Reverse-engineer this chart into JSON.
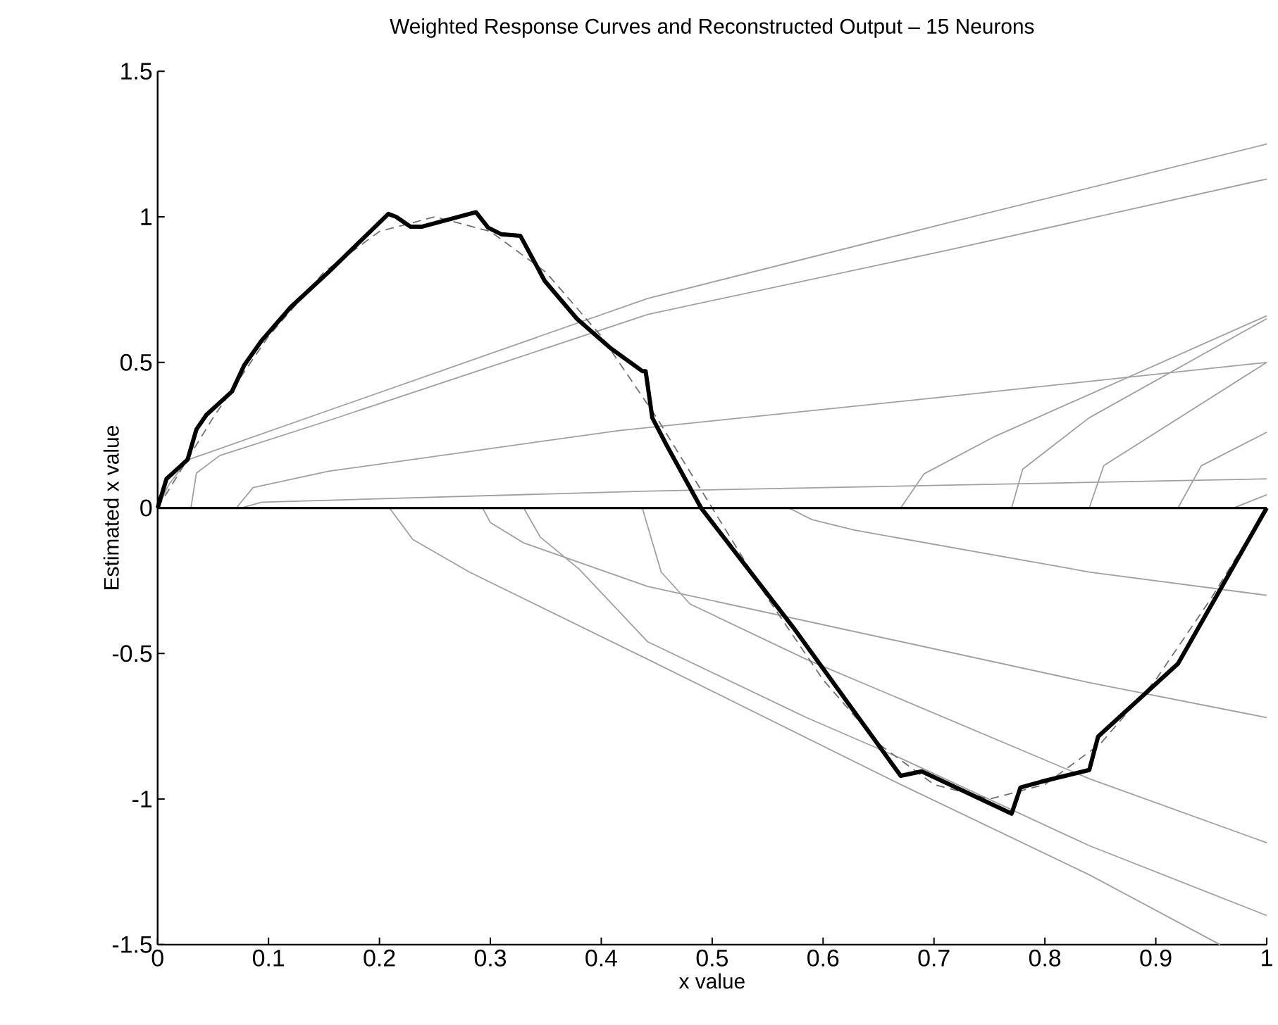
{
  "chart_data": {
    "type": "line",
    "title": "Weighted Response Curves and Reconstructed Output – 15 Neurons",
    "xlabel": "x value",
    "ylabel": "Estimated x value",
    "xlim": [
      0,
      1
    ],
    "ylim": [
      -1.5,
      1.5
    ],
    "xticks": [
      0,
      0.1,
      0.2,
      0.3,
      0.4,
      0.5,
      0.6,
      0.7,
      0.8,
      0.9,
      1
    ],
    "yticks": [
      -1.5,
      -1,
      -0.5,
      0,
      0.5,
      1,
      1.5
    ],
    "marker": "none",
    "ref_lines": [
      {
        "axis": "y",
        "value": 0,
        "color": "#000000"
      }
    ],
    "series": [
      {
        "color": "#000000",
        "x": [
          0,
          0.008,
          0.027,
          0.035,
          0.044,
          0.067,
          0.078,
          0.094,
          0.12,
          0.154,
          0.208,
          0.215,
          0.228,
          0.238,
          0.287,
          0.298,
          0.31,
          0.327,
          0.349,
          0.378,
          0.408,
          0.437,
          0.44,
          0.446,
          0.459,
          0.49,
          0.573,
          0.67,
          0.689,
          0.77,
          0.778,
          0.797,
          0.84,
          0.848,
          0.92,
          1
        ],
        "values": [
          0,
          0.1,
          0.166,
          0.27,
          0.32,
          0.4,
          0.49,
          0.576,
          0.69,
          0.81,
          1.01,
          1.0,
          0.966,
          0.966,
          1.016,
          0.963,
          0.94,
          0.935,
          0.78,
          0.65,
          0.55,
          0.47,
          0.47,
          0.31,
          0.215,
          0,
          -0.41,
          -0.92,
          -0.905,
          -1.05,
          -0.96,
          -0.94,
          -0.9,
          -0.785,
          -0.535,
          0
        ]
      },
      {
        "color": "#707070",
        "line_style": "dashed",
        "x": [
          0,
          0.05,
          0.1,
          0.15,
          0.2,
          0.25,
          0.3,
          0.35,
          0.4,
          0.45,
          0.5,
          0.55,
          0.6,
          0.65,
          0.7,
          0.75,
          0.8,
          0.85,
          0.9,
          0.95,
          1
        ],
        "values": [
          0,
          0.31,
          0.59,
          0.81,
          0.95,
          1,
          0.95,
          0.81,
          0.59,
          0.31,
          0,
          -0.31,
          -0.59,
          -0.81,
          -0.95,
          -1,
          -0.95,
          -0.81,
          -0.59,
          -0.31,
          0
        ]
      },
      {
        "color": "#a0a0a0",
        "x": [
          0,
          0.01,
          0.027,
          0.154,
          0.442,
          0.713,
          1
        ],
        "values": [
          0,
          0.08,
          0.165,
          0.335,
          0.72,
          0.98,
          1.25
        ]
      },
      {
        "color": "#a0a0a0",
        "x": [
          0.03,
          0.035,
          0.056,
          0.154,
          0.442,
          0.713,
          1
        ],
        "values": [
          0,
          0.12,
          0.18,
          0.3,
          0.665,
          0.886,
          1.13
        ]
      },
      {
        "color": "#a0a0a0",
        "x": [
          0.071,
          0.086,
          0.154,
          0.416,
          0.713,
          1
        ],
        "values": [
          0,
          0.07,
          0.126,
          0.266,
          0.383,
          0.5
        ]
      },
      {
        "color": "#a0a0a0",
        "x": [
          0.075,
          0.094,
          0.442,
          1
        ],
        "values": [
          0,
          0.02,
          0.058,
          0.1
        ]
      },
      {
        "color": "#a0a0a0",
        "x": [
          0.67,
          0.691,
          0.755,
          1
        ],
        "values": [
          0,
          0.117,
          0.246,
          0.66
        ]
      },
      {
        "color": "#a0a0a0",
        "x": [
          0.77,
          0.78,
          0.84,
          1
        ],
        "values": [
          0,
          0.133,
          0.31,
          0.65
        ]
      },
      {
        "color": "#a0a0a0",
        "x": [
          0.84,
          0.853,
          1
        ],
        "values": [
          0,
          0.145,
          0.5
        ]
      },
      {
        "color": "#a0a0a0",
        "x": [
          0.92,
          0.941,
          1
        ],
        "values": [
          0,
          0.145,
          0.26
        ]
      },
      {
        "color": "#a0a0a0",
        "x": [
          0.97,
          1
        ],
        "values": [
          0,
          0.045
        ]
      },
      {
        "color": "#a0a0a0",
        "x": [
          0.209,
          0.23,
          0.281,
          0.442,
          0.67,
          0.84,
          0.958
        ],
        "values": [
          0,
          -0.108,
          -0.22,
          -0.52,
          -0.95,
          -1.26,
          -1.5
        ]
      },
      {
        "color": "#a0a0a0",
        "x": [
          0.293,
          0.3,
          0.33,
          0.442,
          0.84,
          1
        ],
        "values": [
          0,
          -0.05,
          -0.12,
          -0.27,
          -0.6,
          -0.72
        ]
      },
      {
        "color": "#a0a0a0",
        "x": [
          0.33,
          0.345,
          0.38,
          0.442,
          0.585,
          0.67,
          0.84,
          1
        ],
        "values": [
          0,
          -0.1,
          -0.21,
          -0.46,
          -0.72,
          -0.86,
          -1.16,
          -1.4
        ]
      },
      {
        "color": "#a0a0a0",
        "x": [
          0.437,
          0.454,
          0.48,
          0.585,
          0.84,
          1
        ],
        "values": [
          0,
          -0.22,
          -0.33,
          -0.52,
          -0.93,
          -1.15
        ]
      },
      {
        "color": "#a0a0a0",
        "x": [
          0.569,
          0.59,
          0.628,
          0.84,
          1
        ],
        "values": [
          0,
          -0.04,
          -0.076,
          -0.22,
          -0.3
        ]
      }
    ]
  }
}
